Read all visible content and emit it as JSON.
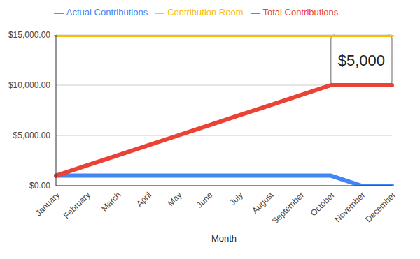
{
  "chart_data": {
    "type": "line",
    "x_label": "Month",
    "categories": [
      "January",
      "February",
      "March",
      "April",
      "May",
      "June",
      "July",
      "August",
      "September",
      "October",
      "November",
      "December"
    ],
    "series": [
      {
        "name": "Actual Contributions",
        "color": "#4285f4",
        "values": [
          1000,
          1000,
          1000,
          1000,
          1000,
          1000,
          1000,
          1000,
          1000,
          1000,
          0,
          0
        ]
      },
      {
        "name": "Total Contributions",
        "color": "#ea4335",
        "values": [
          1000,
          2000,
          3000,
          4000,
          5000,
          6000,
          7000,
          8000,
          9000,
          10000,
          10000,
          10000
        ]
      },
      {
        "name": "Contribution Room",
        "color": "#fbbc04",
        "values": [
          15000,
          15000,
          15000,
          15000,
          15000,
          15000,
          15000,
          15000,
          15000,
          15000,
          15000,
          15000
        ]
      }
    ],
    "ylim": [
      0,
      15000
    ],
    "yticks": [
      {
        "value": 0,
        "label": "$0.00"
      },
      {
        "value": 5000,
        "label": "$5,000.00"
      },
      {
        "value": 10000,
        "label": "$10,000.00"
      },
      {
        "value": 15000,
        "label": "$15,000.00"
      }
    ],
    "grid": true,
    "legend": "top",
    "annotations": [
      {
        "text": "$5,000",
        "x": [
          "October",
          "December"
        ],
        "y": [
          10000,
          15000
        ]
      }
    ]
  }
}
